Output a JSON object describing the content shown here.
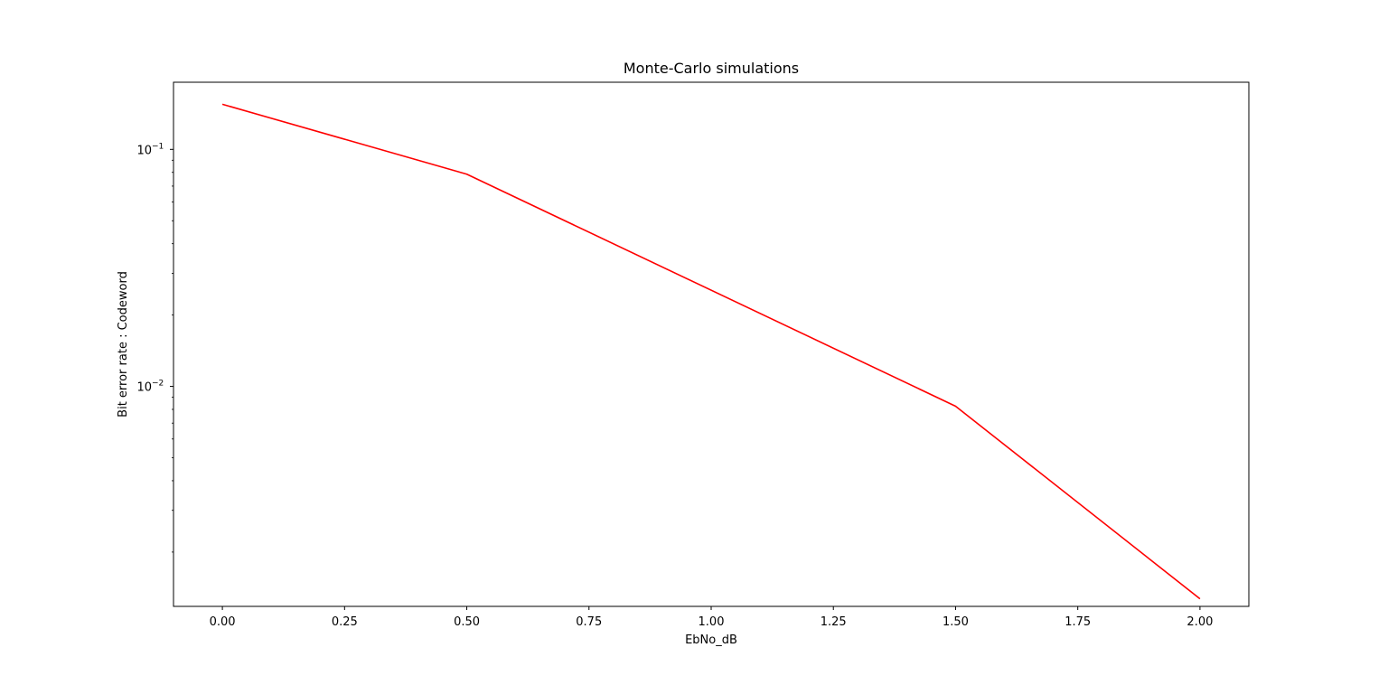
{
  "chart_data": {
    "type": "line",
    "title": "Monte-Carlo simulations",
    "xlabel": "EbNo_dB",
    "ylabel": "Bit error rate : Codeword",
    "yscale": "log",
    "xlim": [
      -0.1,
      2.1
    ],
    "ylim": [
      0.00118,
      0.192
    ],
    "grid": false,
    "legend": "none",
    "x_ticks": [
      {
        "value": 0.0,
        "label": "0.00"
      },
      {
        "value": 0.25,
        "label": "0.25"
      },
      {
        "value": 0.5,
        "label": "0.50"
      },
      {
        "value": 0.75,
        "label": "0.75"
      },
      {
        "value": 1.0,
        "label": "1.00"
      },
      {
        "value": 1.25,
        "label": "1.25"
      },
      {
        "value": 1.5,
        "label": "1.50"
      },
      {
        "value": 1.75,
        "label": "1.75"
      },
      {
        "value": 2.0,
        "label": "2.00"
      }
    ],
    "y_ticks": [
      {
        "value": 0.1,
        "base": "10",
        "exponent": "−1"
      },
      {
        "value": 0.01,
        "base": "10",
        "exponent": "−2"
      }
    ],
    "series": [
      {
        "color": "#ff0000",
        "x": [
          0.0,
          0.5,
          1.5,
          2.0
        ],
        "y": [
          0.155,
          0.0786,
          0.00825,
          0.00127
        ]
      }
    ]
  }
}
